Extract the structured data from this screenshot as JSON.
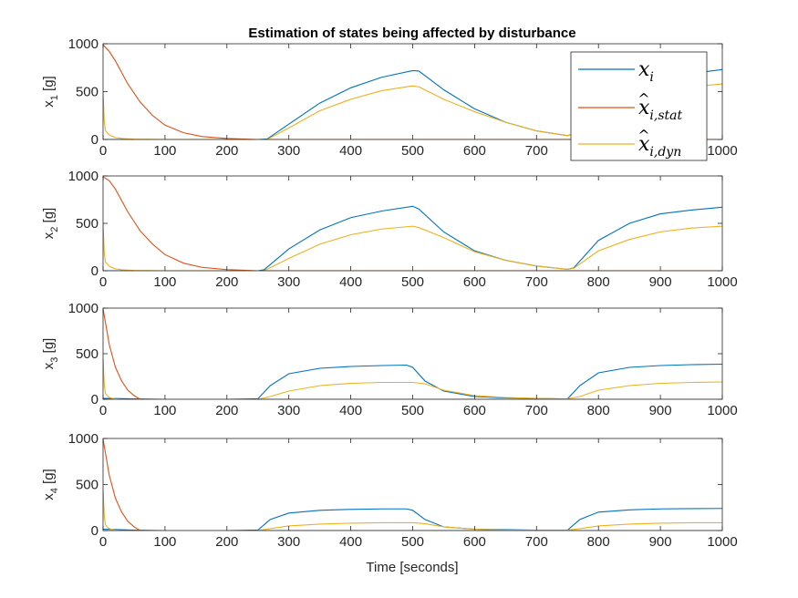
{
  "chart_data": {
    "type": "line",
    "title": "Estimation of states being affected by disturbance",
    "xlabel": "Time [seconds]",
    "xlim": [
      0,
      1000
    ],
    "xticks": [
      0,
      100,
      200,
      300,
      400,
      500,
      600,
      700,
      800,
      900,
      1000
    ],
    "legend": {
      "position": "top-right",
      "entries": [
        {
          "base": "x",
          "hat": false,
          "sub": "i",
          "color": "#0072BD"
        },
        {
          "base": "x",
          "hat": true,
          "sub": "i,stat",
          "color": "#D95319"
        },
        {
          "base": "x",
          "hat": true,
          "sub": "i,dyn",
          "color": "#EDB120"
        }
      ]
    },
    "subplots": [
      {
        "ylabel_base": "x",
        "ylabel_sub": "1",
        "ylabel_unit": " [g]",
        "ylim": [
          0,
          1000
        ],
        "yticks": [
          0,
          500,
          1000
        ],
        "series": [
          {
            "color": "#0072BD",
            "x": [
              0,
              250,
              265,
              300,
              350,
              400,
              450,
              500,
              510,
              550,
              600,
              650,
              700,
              750,
              760,
              800,
              850,
              900,
              950,
              1000
            ],
            "y": [
              0,
              0,
              5,
              160,
              380,
              540,
              650,
              720,
              715,
              520,
              320,
              180,
              90,
              40,
              60,
              330,
              540,
              630,
              690,
              730
            ]
          },
          {
            "color": "#D95319",
            "x": [
              0,
              10,
              20,
              40,
              60,
              80,
              100,
              130,
              160,
              200,
              250,
              300,
              400,
              500,
              600,
              700,
              750,
              800,
              900,
              1000
            ],
            "y": [
              990,
              920,
              820,
              580,
              390,
              250,
              150,
              70,
              30,
              10,
              0,
              0,
              0,
              0,
              0,
              0,
              0,
              0,
              0,
              0
            ]
          },
          {
            "color": "#EDB120",
            "x": [
              0,
              2,
              4,
              8,
              12,
              20,
              30,
              50,
              100,
              200,
              250,
              265,
              300,
              350,
              400,
              450,
              500,
              510,
              550,
              600,
              650,
              700,
              750,
              760,
              800,
              850,
              900,
              950,
              1000
            ],
            "y": [
              500,
              180,
              90,
              60,
              40,
              20,
              10,
              3,
              0,
              0,
              0,
              0,
              120,
              300,
              420,
              510,
              560,
              550,
              420,
              290,
              180,
              90,
              40,
              60,
              290,
              430,
              500,
              550,
              580
            ]
          }
        ]
      },
      {
        "ylabel_base": "x",
        "ylabel_sub": "2",
        "ylabel_unit": " [g]",
        "ylim": [
          0,
          1000
        ],
        "yticks": [
          0,
          500,
          1000
        ],
        "series": [
          {
            "color": "#0072BD",
            "x": [
              0,
              250,
              260,
              300,
              350,
              400,
              450,
              500,
              510,
              550,
              600,
              650,
              700,
              750,
              760,
              800,
              850,
              900,
              950,
              1000
            ],
            "y": [
              0,
              0,
              10,
              230,
              430,
              560,
              630,
              680,
              650,
              410,
              210,
              110,
              50,
              15,
              30,
              320,
              500,
              600,
              640,
              670
            ]
          },
          {
            "color": "#D95319",
            "x": [
              0,
              10,
              20,
              40,
              60,
              80,
              100,
              130,
              160,
              200,
              250,
              300,
              400,
              500,
              600,
              700,
              750,
              800,
              900,
              1000
            ],
            "y": [
              990,
              950,
              860,
              620,
              420,
              280,
              170,
              80,
              35,
              12,
              0,
              0,
              0,
              0,
              0,
              0,
              0,
              0,
              0,
              0
            ]
          },
          {
            "color": "#EDB120",
            "x": [
              0,
              2,
              4,
              8,
              12,
              20,
              30,
              50,
              100,
              200,
              250,
              260,
              300,
              350,
              400,
              450,
              500,
              510,
              550,
              600,
              650,
              700,
              750,
              760,
              800,
              850,
              900,
              950,
              1000
            ],
            "y": [
              500,
              180,
              90,
              60,
              40,
              20,
              10,
              3,
              0,
              0,
              0,
              0,
              130,
              280,
              380,
              440,
              470,
              455,
              350,
              200,
              110,
              50,
              15,
              25,
              210,
              330,
              410,
              450,
              470
            ]
          }
        ]
      },
      {
        "ylabel_base": "x",
        "ylabel_sub": "3",
        "ylabel_unit": " [g]",
        "ylim": [
          0,
          1000
        ],
        "yticks": [
          0,
          500,
          1000
        ],
        "series": [
          {
            "color": "#0072BD",
            "x": [
              0,
              50,
              100,
              200,
              240,
              250,
              270,
              300,
              350,
              400,
              450,
              490,
              500,
              520,
              550,
              600,
              650,
              700,
              740,
              750,
              770,
              800,
              850,
              900,
              950,
              1000
            ],
            "y": [
              10,
              5,
              0,
              0,
              5,
              5,
              150,
              280,
              340,
              360,
              370,
              375,
              350,
              200,
              90,
              30,
              15,
              10,
              5,
              5,
              150,
              290,
              350,
              370,
              380,
              385
            ]
          },
          {
            "color": "#D95319",
            "x": [
              0,
              5,
              10,
              20,
              30,
              40,
              50,
              60,
              70,
              80,
              100,
              130,
              160,
              200,
              250,
              300,
              500,
              600,
              700,
              800,
              1000
            ],
            "y": [
              990,
              800,
              600,
              350,
              200,
              100,
              40,
              0,
              -20,
              -25,
              -20,
              -10,
              0,
              0,
              0,
              0,
              0,
              0,
              0,
              0,
              0
            ]
          },
          {
            "color": "#EDB120",
            "x": [
              0,
              2,
              4,
              8,
              12,
              20,
              30,
              50,
              100,
              200,
              250,
              270,
              300,
              350,
              400,
              450,
              500,
              520,
              550,
              600,
              650,
              700,
              750,
              770,
              800,
              850,
              900,
              950,
              1000
            ],
            "y": [
              450,
              150,
              60,
              30,
              15,
              5,
              0,
              0,
              0,
              0,
              0,
              30,
              90,
              150,
              175,
              185,
              185,
              170,
              100,
              40,
              20,
              10,
              5,
              30,
              100,
              150,
              175,
              185,
              190
            ]
          }
        ]
      },
      {
        "ylabel_base": "x",
        "ylabel_sub": "4",
        "ylabel_unit": " [g]",
        "ylim": [
          0,
          1000
        ],
        "yticks": [
          0,
          500,
          1000
        ],
        "series": [
          {
            "color": "#0072BD",
            "x": [
              0,
              50,
              100,
              200,
              240,
              250,
              270,
              300,
              350,
              400,
              450,
              490,
              500,
              520,
              550,
              600,
              650,
              700,
              740,
              750,
              770,
              800,
              850,
              900,
              950,
              1000
            ],
            "y": [
              15,
              5,
              0,
              0,
              5,
              5,
              120,
              190,
              220,
              230,
              235,
              235,
              220,
              120,
              40,
              15,
              10,
              5,
              5,
              5,
              120,
              200,
              225,
              235,
              238,
              240
            ]
          },
          {
            "color": "#D95319",
            "x": [
              0,
              5,
              10,
              20,
              30,
              40,
              50,
              60,
              70,
              80,
              100,
              130,
              160,
              200,
              250,
              300,
              500,
              600,
              700,
              800,
              1000
            ],
            "y": [
              990,
              800,
              600,
              350,
              200,
              100,
              40,
              0,
              -20,
              -25,
              -20,
              -10,
              0,
              0,
              0,
              0,
              0,
              0,
              0,
              0,
              0
            ]
          },
          {
            "color": "#EDB120",
            "x": [
              0,
              2,
              4,
              8,
              12,
              20,
              30,
              50,
              100,
              200,
              250,
              270,
              300,
              350,
              400,
              450,
              500,
              520,
              550,
              600,
              650,
              700,
              750,
              770,
              800,
              850,
              900,
              950,
              1000
            ],
            "y": [
              450,
              150,
              60,
              30,
              15,
              5,
              0,
              0,
              0,
              0,
              0,
              20,
              50,
              70,
              80,
              85,
              85,
              75,
              40,
              15,
              5,
              5,
              5,
              20,
              50,
              70,
              80,
              85,
              85
            ]
          }
        ]
      }
    ]
  }
}
